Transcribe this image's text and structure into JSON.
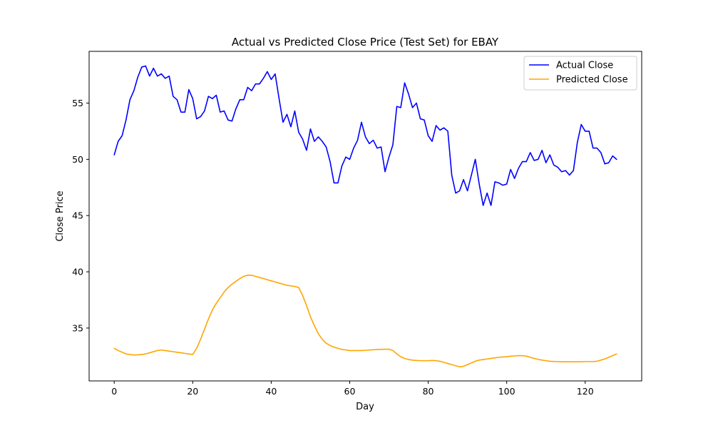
{
  "chart_data": {
    "type": "line",
    "title": "Actual vs Predicted Close Price (Test Set) for EBAY",
    "xlabel": "Day",
    "ylabel": "Close Price",
    "xlim": [
      -6.4,
      134.4
    ],
    "ylim": [
      30.3,
      59.6
    ],
    "xticks": [
      0,
      20,
      40,
      60,
      80,
      100,
      120
    ],
    "yticks": [
      35,
      40,
      45,
      50,
      55
    ],
    "legend_position": "top-right",
    "grid": false,
    "series": [
      {
        "name": "Actual Close",
        "color": "#0000ff",
        "x": [
          0,
          1,
          2,
          3,
          4,
          5,
          6,
          7,
          8,
          9,
          10,
          11,
          12,
          13,
          14,
          15,
          16,
          17,
          18,
          19,
          20,
          21,
          22,
          23,
          24,
          25,
          26,
          27,
          28,
          29,
          30,
          31,
          32,
          33,
          34,
          35,
          36,
          37,
          38,
          39,
          40,
          41,
          42,
          43,
          44,
          45,
          46,
          47,
          48,
          49,
          50,
          51,
          52,
          53,
          54,
          55,
          56,
          57,
          58,
          59,
          60,
          61,
          62,
          63,
          64,
          65,
          66,
          67,
          68,
          69,
          70,
          71,
          72,
          73,
          74,
          75,
          76,
          77,
          78,
          79,
          80,
          81,
          82,
          83,
          84,
          85,
          86,
          87,
          88,
          89,
          90,
          91,
          92,
          93,
          94,
          95,
          96,
          97,
          98,
          99,
          100,
          101,
          102,
          103,
          104,
          105,
          106,
          107,
          108,
          109,
          110,
          111,
          112,
          113,
          114,
          115,
          116,
          117,
          118,
          119,
          120,
          121,
          122,
          123,
          124,
          125,
          126,
          127,
          128
        ],
        "values": [
          50.4,
          51.6,
          52.1,
          53.5,
          55.3,
          56.1,
          57.3,
          58.2,
          58.3,
          57.4,
          58.1,
          57.4,
          57.6,
          57.2,
          57.4,
          55.6,
          55.3,
          54.2,
          54.2,
          56.2,
          55.4,
          53.6,
          53.8,
          54.3,
          55.6,
          55.4,
          55.7,
          54.2,
          54.3,
          53.5,
          53.4,
          54.5,
          55.3,
          55.3,
          56.4,
          56.1,
          56.7,
          56.7,
          57.2,
          57.8,
          57.1,
          57.6,
          55.4,
          53.3,
          54.0,
          52.9,
          54.3,
          52.4,
          51.8,
          50.8,
          52.7,
          51.6,
          52.0,
          51.6,
          51.1,
          49.8,
          47.9,
          47.9,
          49.4,
          50.2,
          50.0,
          51.0,
          51.7,
          53.3,
          52.0,
          51.4,
          51.7,
          51.0,
          51.1,
          48.9,
          50.2,
          51.3,
          54.7,
          54.6,
          56.8,
          55.8,
          54.6,
          55.0,
          53.6,
          53.5,
          52.1,
          51.6,
          53.0,
          52.6,
          52.8,
          52.5,
          48.6,
          47.0,
          47.2,
          48.2,
          47.2,
          48.6,
          50.0,
          47.8,
          45.9,
          47.0,
          45.9,
          48.0,
          47.9,
          47.7,
          47.8,
          49.1,
          48.3,
          49.2,
          49.8,
          49.8,
          50.6,
          49.9,
          50.0,
          50.8,
          49.7,
          50.4,
          49.5,
          49.3,
          48.9,
          49.0,
          48.6,
          49.0,
          51.5,
          53.1,
          52.5,
          52.5,
          51.0,
          51.0,
          50.6,
          49.6,
          49.7,
          50.3,
          50.0
        ]
      },
      {
        "name": "Predicted Close",
        "color": "#ffa500",
        "x": [
          0,
          1,
          2,
          3,
          4,
          5,
          6,
          7,
          8,
          9,
          10,
          11,
          12,
          13,
          14,
          15,
          16,
          17,
          18,
          19,
          20,
          21,
          22,
          23,
          24,
          25,
          26,
          27,
          28,
          29,
          30,
          31,
          32,
          33,
          34,
          35,
          36,
          37,
          38,
          39,
          40,
          41,
          42,
          43,
          44,
          45,
          46,
          47,
          48,
          49,
          50,
          51,
          52,
          53,
          54,
          55,
          56,
          57,
          58,
          59,
          60,
          61,
          62,
          63,
          64,
          65,
          66,
          67,
          68,
          69,
          70,
          71,
          72,
          73,
          74,
          75,
          76,
          77,
          78,
          79,
          80,
          81,
          82,
          83,
          84,
          85,
          86,
          87,
          88,
          89,
          90,
          91,
          92,
          93,
          94,
          95,
          96,
          97,
          98,
          99,
          100,
          101,
          102,
          103,
          104,
          105,
          106,
          107,
          108,
          109,
          110,
          111,
          112,
          113,
          114,
          115,
          116,
          117,
          118,
          119,
          120,
          121,
          122,
          123,
          124,
          125,
          126,
          127,
          128
        ],
        "values": [
          33.2,
          33.0,
          32.85,
          32.7,
          32.65,
          32.6,
          32.62,
          32.65,
          32.7,
          32.8,
          32.9,
          33.0,
          33.05,
          33.0,
          32.95,
          32.9,
          32.85,
          32.8,
          32.75,
          32.7,
          32.65,
          33.2,
          34.0,
          34.9,
          35.8,
          36.6,
          37.2,
          37.7,
          38.2,
          38.6,
          38.9,
          39.15,
          39.4,
          39.6,
          39.7,
          39.7,
          39.6,
          39.5,
          39.4,
          39.3,
          39.2,
          39.1,
          39.0,
          38.9,
          38.8,
          38.75,
          38.7,
          38.6,
          37.9,
          37.0,
          36.0,
          35.2,
          34.5,
          34.0,
          33.65,
          33.45,
          33.3,
          33.2,
          33.1,
          33.05,
          33.0,
          33.0,
          33.0,
          33.0,
          33.02,
          33.05,
          33.07,
          33.1,
          33.1,
          33.12,
          33.12,
          33.0,
          32.7,
          32.45,
          32.3,
          32.2,
          32.15,
          32.12,
          32.1,
          32.1,
          32.1,
          32.12,
          32.1,
          32.05,
          31.95,
          31.85,
          31.75,
          31.65,
          31.55,
          31.6,
          31.75,
          31.9,
          32.05,
          32.15,
          32.2,
          32.25,
          32.3,
          32.35,
          32.4,
          32.43,
          32.45,
          32.5,
          32.52,
          32.55,
          32.55,
          32.5,
          32.4,
          32.3,
          32.22,
          32.15,
          32.1,
          32.05,
          32.03,
          32.02,
          32.0,
          32.0,
          32.0,
          32.0,
          32.0,
          32.0,
          32.02,
          32.02,
          32.02,
          32.05,
          32.15,
          32.25,
          32.4,
          32.55,
          32.7
        ]
      }
    ]
  }
}
